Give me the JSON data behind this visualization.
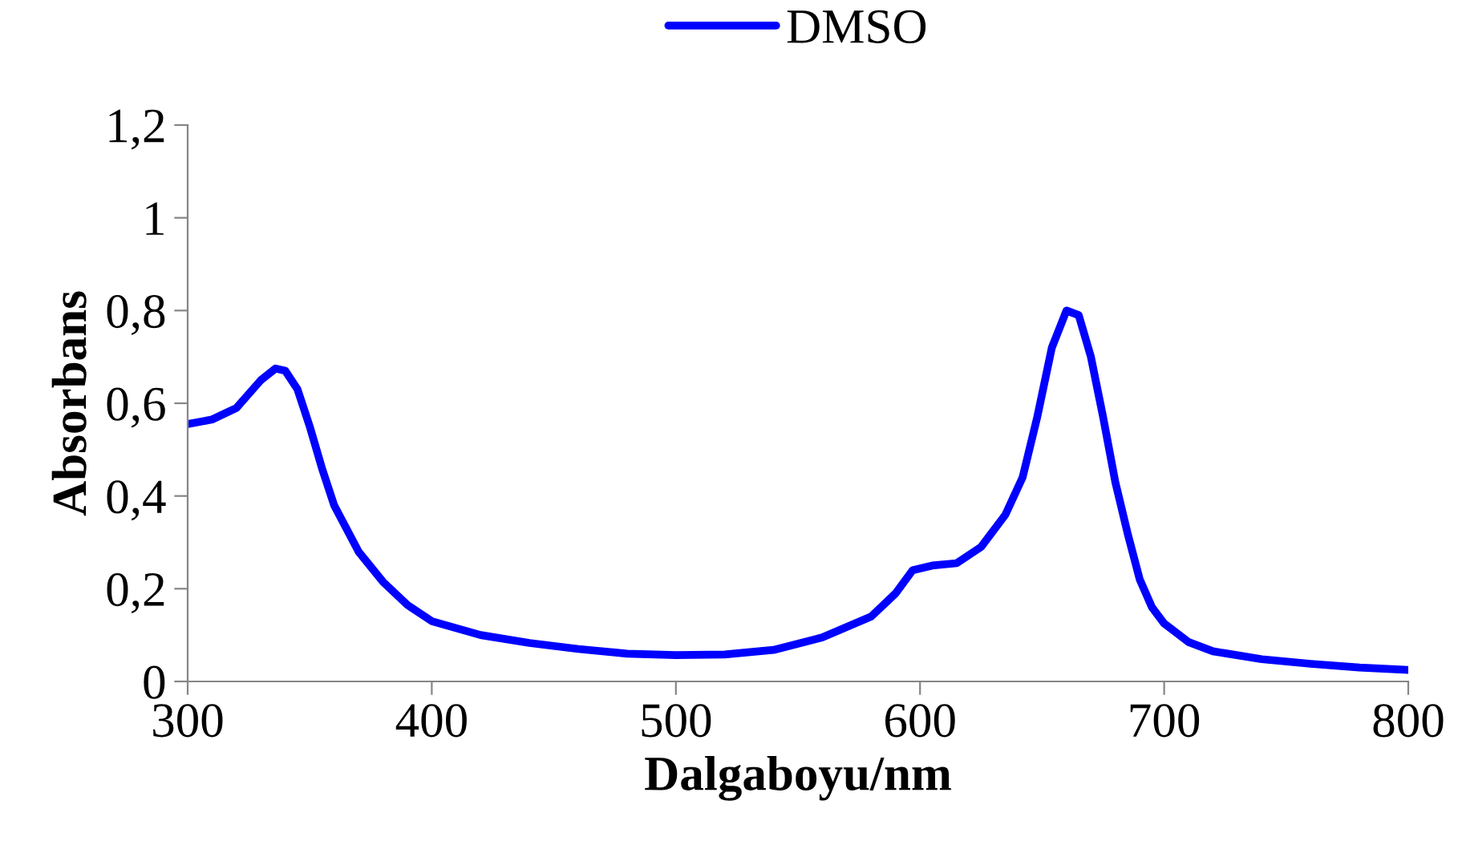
{
  "chart_data": {
    "type": "line",
    "xlabel": "Dalgaboyu/nm",
    "ylabel": "Absorbans",
    "xlim": [
      300,
      800
    ],
    "xticks": [
      300,
      400,
      500,
      600,
      700,
      800
    ],
    "ylim": [
      0,
      1.2
    ],
    "yticks": [
      0,
      {
        "value": 0.2,
        "label": "0,2"
      },
      {
        "value": 0.4,
        "label": "0,4"
      },
      {
        "value": 0.6,
        "label": "0,6"
      },
      {
        "value": 0.8,
        "label": "0,8"
      },
      1,
      {
        "value": 1.2,
        "label": "1,2"
      }
    ],
    "grid": false,
    "legend": "top",
    "marker": "none",
    "line_style": "solid",
    "series": [
      {
        "name": "DMSO",
        "color": "#0000ff",
        "x": [
          300,
          310,
          320,
          330,
          336,
          340,
          345,
          350,
          355,
          360,
          370,
          380,
          390,
          400,
          420,
          440,
          460,
          480,
          500,
          520,
          540,
          560,
          580,
          590,
          597,
          605,
          615,
          625,
          635,
          642,
          648,
          654,
          660,
          665,
          670,
          675,
          680,
          685,
          690,
          695,
          700,
          710,
          720,
          740,
          760,
          780,
          800
        ],
        "values": [
          0.555,
          0.565,
          0.59,
          0.65,
          0.675,
          0.67,
          0.63,
          0.55,
          0.46,
          0.38,
          0.28,
          0.215,
          0.165,
          0.13,
          0.1,
          0.083,
          0.07,
          0.06,
          0.057,
          0.058,
          0.068,
          0.095,
          0.14,
          0.19,
          0.24,
          0.25,
          0.255,
          0.29,
          0.36,
          0.44,
          0.57,
          0.72,
          0.8,
          0.79,
          0.7,
          0.57,
          0.43,
          0.32,
          0.22,
          0.16,
          0.125,
          0.085,
          0.065,
          0.048,
          0.038,
          0.03,
          0.025
        ]
      }
    ]
  }
}
